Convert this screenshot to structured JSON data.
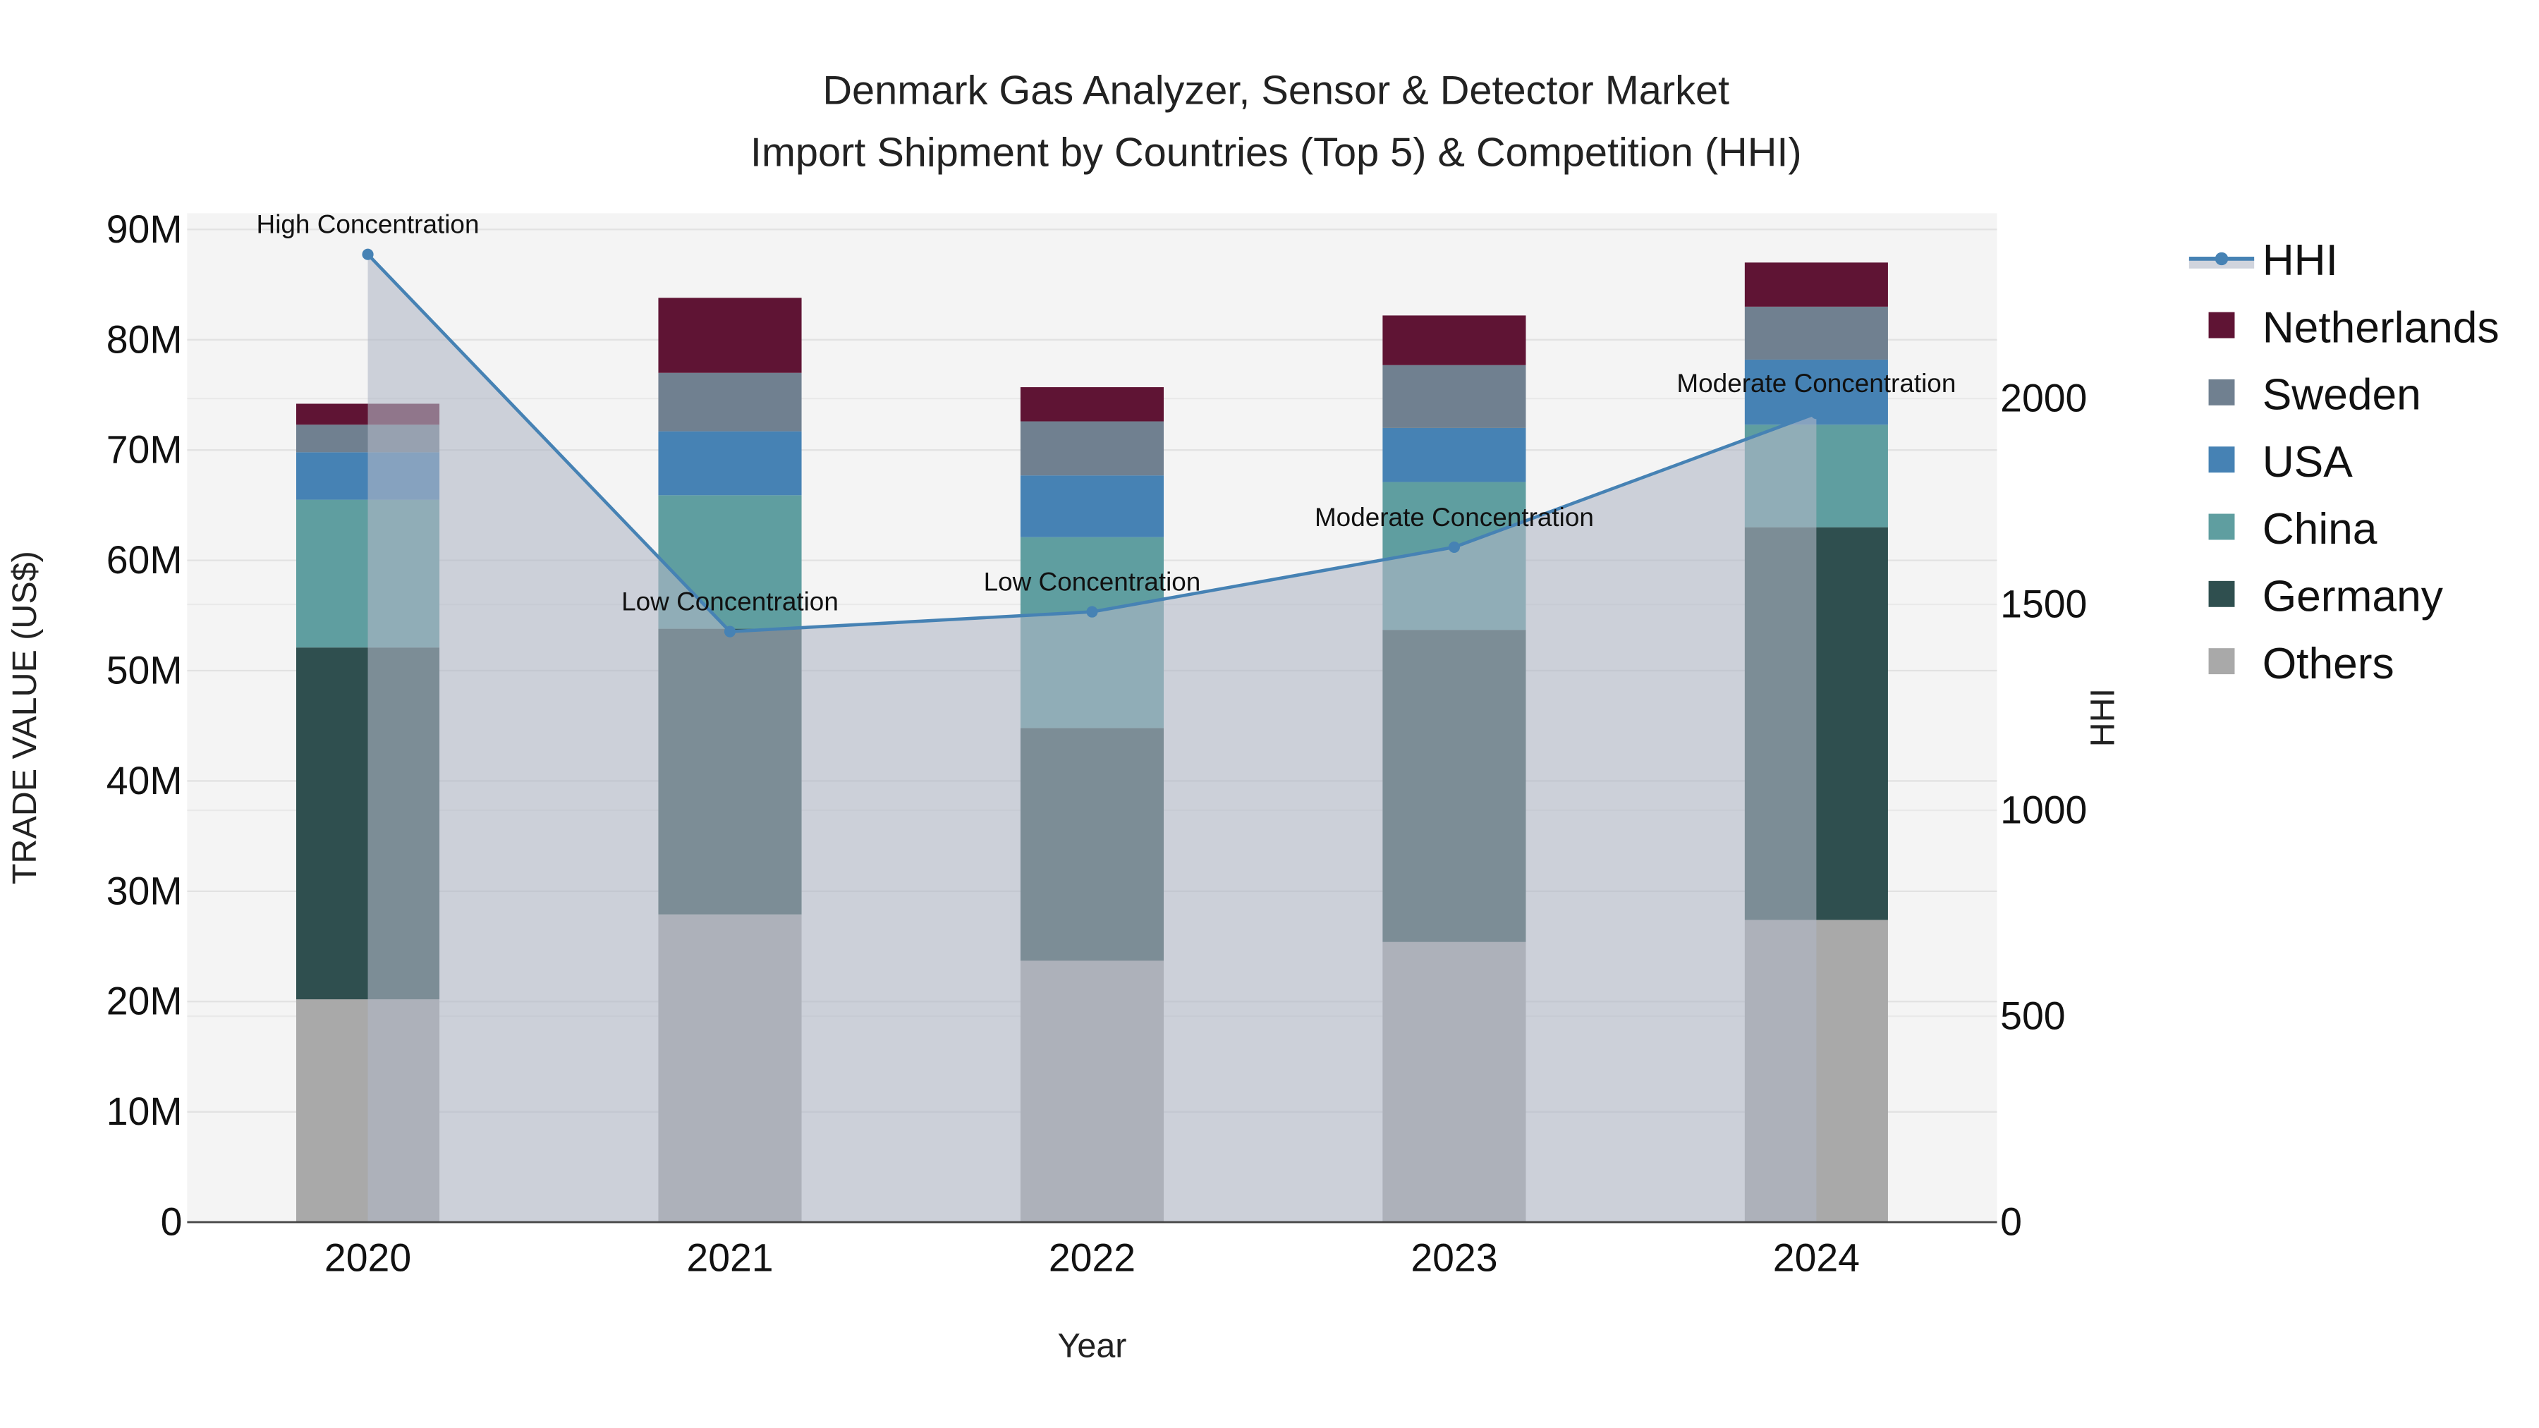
{
  "chart_data": {
    "type": "bar",
    "title": "Denmark Gas Analyzer, Sensor & Detector Market",
    "subtitle": "Import Shipment by Countries (Top 5) & Competition (HHI)",
    "xlabel": "Year",
    "ylabel": "TRADE VALUE (US$)",
    "y2label": "HHI",
    "categories": [
      "2020",
      "2021",
      "2022",
      "2023",
      "2024"
    ],
    "ylim": [
      0,
      90000000
    ],
    "y_ticks": [
      0,
      10000000,
      20000000,
      30000000,
      40000000,
      50000000,
      60000000,
      70000000,
      80000000,
      90000000
    ],
    "y_tick_labels": [
      "0",
      "10M",
      "20M",
      "30M",
      "40M",
      "50M",
      "60M",
      "70M",
      "80M",
      "90M"
    ],
    "y2lim": [
      0,
      2450
    ],
    "y2_ticks": [
      0,
      500,
      1000,
      1500,
      2000
    ],
    "y2_tick_labels": [
      "0",
      "500",
      "1000",
      "1500",
      "2000"
    ],
    "grid": true,
    "legend_position": "right",
    "stacked": true,
    "series": [
      {
        "name": "Others",
        "color": "#a9a9a9",
        "values": [
          20200000,
          27900000,
          23700000,
          25400000,
          27400000
        ]
      },
      {
        "name": "Germany",
        "color": "#2f4f4f",
        "values": [
          31900000,
          25900000,
          21100000,
          28300000,
          35600000
        ]
      },
      {
        "name": "China",
        "color": "#5f9ea0",
        "values": [
          13400000,
          12100000,
          17300000,
          13400000,
          9300000
        ]
      },
      {
        "name": "USA",
        "color": "#4682b4",
        "values": [
          4300000,
          5800000,
          5600000,
          4900000,
          5900000
        ]
      },
      {
        "name": "Sweden",
        "color": "#708090",
        "values": [
          2500000,
          5300000,
          4900000,
          5700000,
          4800000
        ]
      },
      {
        "name": "Netherlands",
        "color": "#5f1434",
        "values": [
          1900000,
          6800000,
          3100000,
          4500000,
          4000000
        ]
      }
    ],
    "line_series": {
      "name": "HHI",
      "color": "#4682b4",
      "axis": "right",
      "values": [
        2350,
        1434,
        1482,
        1639,
        1964
      ],
      "annotations": [
        "High Concentration",
        "Low Concentration",
        "Low Concentration",
        "Moderate Concentration",
        "Moderate Concentration"
      ]
    },
    "legend": [
      "HHI",
      "Netherlands",
      "Sweden",
      "USA",
      "China",
      "Germany",
      "Others"
    ]
  }
}
